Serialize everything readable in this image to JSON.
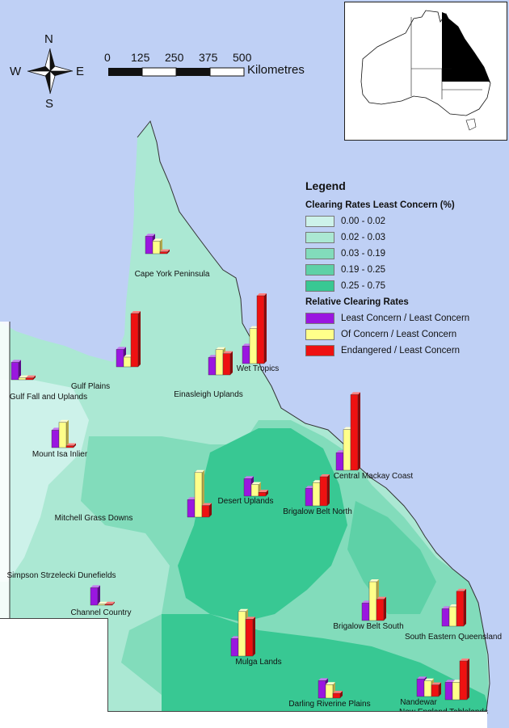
{
  "legend": {
    "title": "Legend",
    "clearing_title": "Clearing Rates Least Concern (%)",
    "classes": [
      {
        "label": "0.00 - 0.02",
        "color": "#cdf2ea"
      },
      {
        "label": "0.02 - 0.03",
        "color": "#abe8d3"
      },
      {
        "label": "0.03 - 0.19",
        "color": "#82dcbb"
      },
      {
        "label": "0.19 - 0.25",
        "color": "#5ed1a7"
      },
      {
        "label": "0.25 - 0.75",
        "color": "#38c893"
      }
    ],
    "relative_title": "Relative Clearing Rates",
    "relative": [
      {
        "label": "Least Concern / Least Concern",
        "color": "#9a16e0"
      },
      {
        "label": "Of Concern / Least Concern",
        "color": "#ffff8a"
      },
      {
        "label": "Endangered / Least Concern",
        "color": "#ee1111"
      }
    ]
  },
  "scale": {
    "ticks": [
      "0",
      "125",
      "250",
      "375",
      "500"
    ],
    "unit": "Kilometres"
  },
  "compass": {
    "n": "N",
    "s": "S",
    "e": "E",
    "w": "W"
  },
  "regions": [
    {
      "name": "Cape York Peninsula",
      "values": [
        1.8,
        1.3,
        0.2
      ]
    },
    {
      "name": "Gulf Plains",
      "values": [
        1.8,
        1.0,
        5.5
      ]
    },
    {
      "name": "Einasleigh Uplands",
      "values": [
        1.8,
        2.6,
        2.2
      ]
    },
    {
      "name": "Wet Tropics",
      "values": [
        1.8,
        3.6,
        7.0
      ]
    },
    {
      "name": "Gulf Fall and Uplands",
      "values": [
        1.8,
        0.2,
        0.2
      ]
    },
    {
      "name": "Mount Isa Inlier",
      "values": [
        1.8,
        2.6,
        0.2
      ]
    },
    {
      "name": "Central Mackay Coast",
      "values": [
        1.8,
        4.2,
        7.8
      ]
    },
    {
      "name": "Desert Uplands",
      "values": [
        1.8,
        1.2,
        0.4
      ]
    },
    {
      "name": "Brigalow Belt North",
      "values": [
        1.8,
        2.4,
        3.0
      ]
    },
    {
      "name": "Mitchell Grass Downs",
      "values": [
        1.8,
        4.6,
        1.2
      ]
    },
    {
      "name": "Simpson Strzelecki Dunefields",
      "values": [
        0,
        0,
        0
      ]
    },
    {
      "name": "Channel Country",
      "values": [
        1.8,
        0.1,
        0.1
      ]
    },
    {
      "name": "Mulga Lands",
      "values": [
        1.8,
        4.6,
        3.8
      ]
    },
    {
      "name": "Brigalow Belt South",
      "values": [
        1.8,
        4.0,
        2.2
      ]
    },
    {
      "name": "South Eastern Queensland",
      "values": [
        1.8,
        2.0,
        3.6
      ]
    },
    {
      "name": "Darling Riverine Plains",
      "values": [
        1.8,
        1.4,
        0.5
      ]
    },
    {
      "name": "Nandewar",
      "values": [
        1.8,
        1.6,
        1.2
      ]
    },
    {
      "name": "New England Tablelands",
      "values": [
        1.8,
        1.8,
        4.0
      ]
    }
  ]
}
